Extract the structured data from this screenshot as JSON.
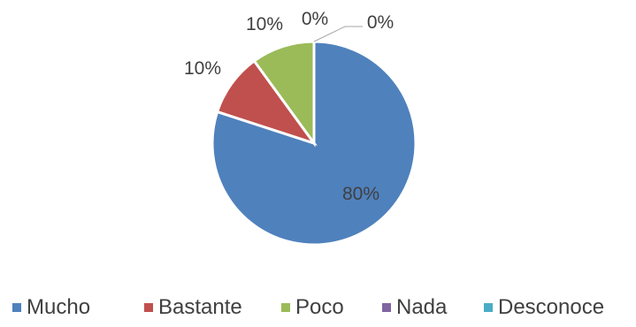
{
  "chart_data": {
    "type": "pie",
    "title": "",
    "categories": [
      "Mucho",
      "Bastante",
      "Poco",
      "Nada",
      "Desconoce"
    ],
    "values": [
      80,
      10,
      10,
      0,
      0
    ],
    "data_labels": [
      "80%",
      "10%",
      "10%",
      "0%",
      "0%"
    ],
    "colors": [
      "#4F81BD",
      "#C0504D",
      "#9BBB59",
      "#8064A2",
      "#4BACC6"
    ],
    "legend_position": "bottom",
    "start_angle": "12 o'clock",
    "direction": "clockwise",
    "slice_borders": "white"
  }
}
